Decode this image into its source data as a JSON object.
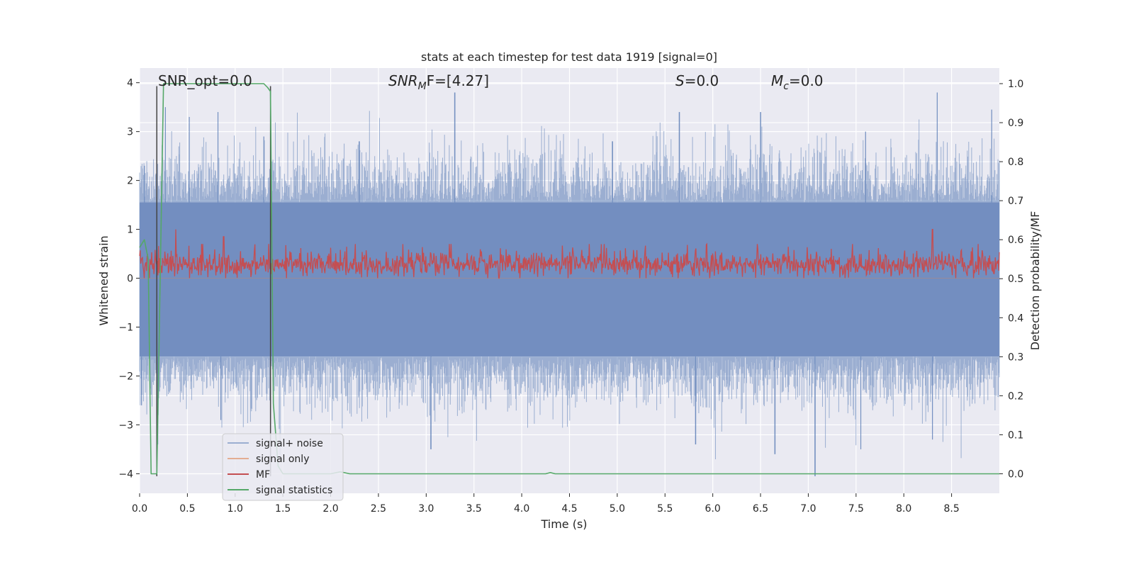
{
  "chart_data": {
    "type": "line",
    "title": "stats at each timestep for test data 1919 [signal=0]",
    "xlabel": "Time (s)",
    "ylabel_left": "Whitened strain",
    "ylabel_right": "Detection probability/MF",
    "xlim": [
      0.0,
      9.0
    ],
    "ylim_left": [
      -4.4,
      4.3
    ],
    "ylim_right": [
      -0.05,
      1.04
    ],
    "x_ticks": [
      "0.0",
      "0.5",
      "1.0",
      "1.5",
      "2.0",
      "2.5",
      "3.0",
      "3.5",
      "4.0",
      "4.5",
      "5.0",
      "5.5",
      "6.0",
      "6.5",
      "7.0",
      "7.5",
      "8.0",
      "8.5"
    ],
    "y_ticks_left": [
      "4",
      "3",
      "2",
      "1",
      "0",
      "−1",
      "−2",
      "−3",
      "−4"
    ],
    "y_ticks_right": [
      "1.0",
      "0.9",
      "0.8",
      "0.7",
      "0.6",
      "0.5",
      "0.4",
      "0.3",
      "0.2",
      "0.1",
      "0.0"
    ],
    "grid": true,
    "legend_position": "lower-left",
    "annotations": {
      "snr_opt": "SNR_opt=0.0",
      "snr_mf_main": "SNR",
      "snr_mf_sub": "M",
      "snr_mf_rest": "F=[4.27]",
      "s": "S",
      "s_rest": "=0.0",
      "mc": "M",
      "mc_sub": "c",
      "mc_rest": "=0.0"
    },
    "vertical_markers_x": [
      0.18,
      1.37
    ],
    "series": [
      {
        "name": "signal+ noise",
        "color": "#4c72b0",
        "description_axis": "left",
        "envelope_typical": [
          -1.6,
          1.55
        ],
        "peak_values": [
          {
            "x": 0.05,
            "y": 2.3
          },
          {
            "x": 0.27,
            "y": 3.5
          },
          {
            "x": 0.52,
            "y": 3.3
          },
          {
            "x": 0.82,
            "y": 3.4
          },
          {
            "x": 1.3,
            "y": 2.9
          },
          {
            "x": 2.3,
            "y": 2.8
          },
          {
            "x": 3.3,
            "y": 3.8
          },
          {
            "x": 4.95,
            "y": 2.8
          },
          {
            "x": 5.65,
            "y": 3.4
          },
          {
            "x": 6.5,
            "y": 3.4
          },
          {
            "x": 7.6,
            "y": 3.0
          },
          {
            "x": 8.35,
            "y": 3.8
          },
          {
            "x": 8.92,
            "y": 3.45
          }
        ],
        "trough_values": [
          {
            "x": 0.02,
            "y": -2.6
          },
          {
            "x": 0.19,
            "y": -3.4
          },
          {
            "x": 0.85,
            "y": -2.9
          },
          {
            "x": 3.05,
            "y": -3.5
          },
          {
            "x": 5.82,
            "y": -3.4
          },
          {
            "x": 6.65,
            "y": -3.6
          },
          {
            "x": 7.07,
            "y": -4.05
          },
          {
            "x": 7.55,
            "y": -3.5
          },
          {
            "x": 8.3,
            "y": -3.3
          }
        ]
      },
      {
        "name": "signal only",
        "color": "#dd8452",
        "description_axis": "left",
        "values_note": "flat at zero"
      },
      {
        "name": "MF",
        "color": "#c44e52",
        "description_axis": "left",
        "band": [
          0.0,
          0.6
        ],
        "peak_values": [
          {
            "x": 0.38,
            "y": 1.0
          },
          {
            "x": 0.88,
            "y": 0.85
          },
          {
            "x": 8.3,
            "y": 1.0
          }
        ]
      },
      {
        "name": "signal statistics",
        "color": "#55a868",
        "description_axis": "right",
        "x": [
          0.0,
          0.05,
          0.09,
          0.12,
          0.18,
          0.25,
          0.5,
          1.0,
          1.3,
          1.34,
          1.37,
          1.4,
          1.45,
          1.5,
          2.0,
          2.1,
          2.2,
          4.25,
          4.3,
          4.35,
          9.0
        ],
        "y": [
          0.58,
          0.6,
          0.55,
          0.0,
          0.0,
          1.0,
          1.0,
          1.0,
          1.0,
          0.99,
          0.98,
          0.18,
          0.02,
          0.0,
          0.0,
          0.005,
          0.0,
          0.0,
          0.003,
          0.0,
          0.0
        ]
      }
    ]
  }
}
